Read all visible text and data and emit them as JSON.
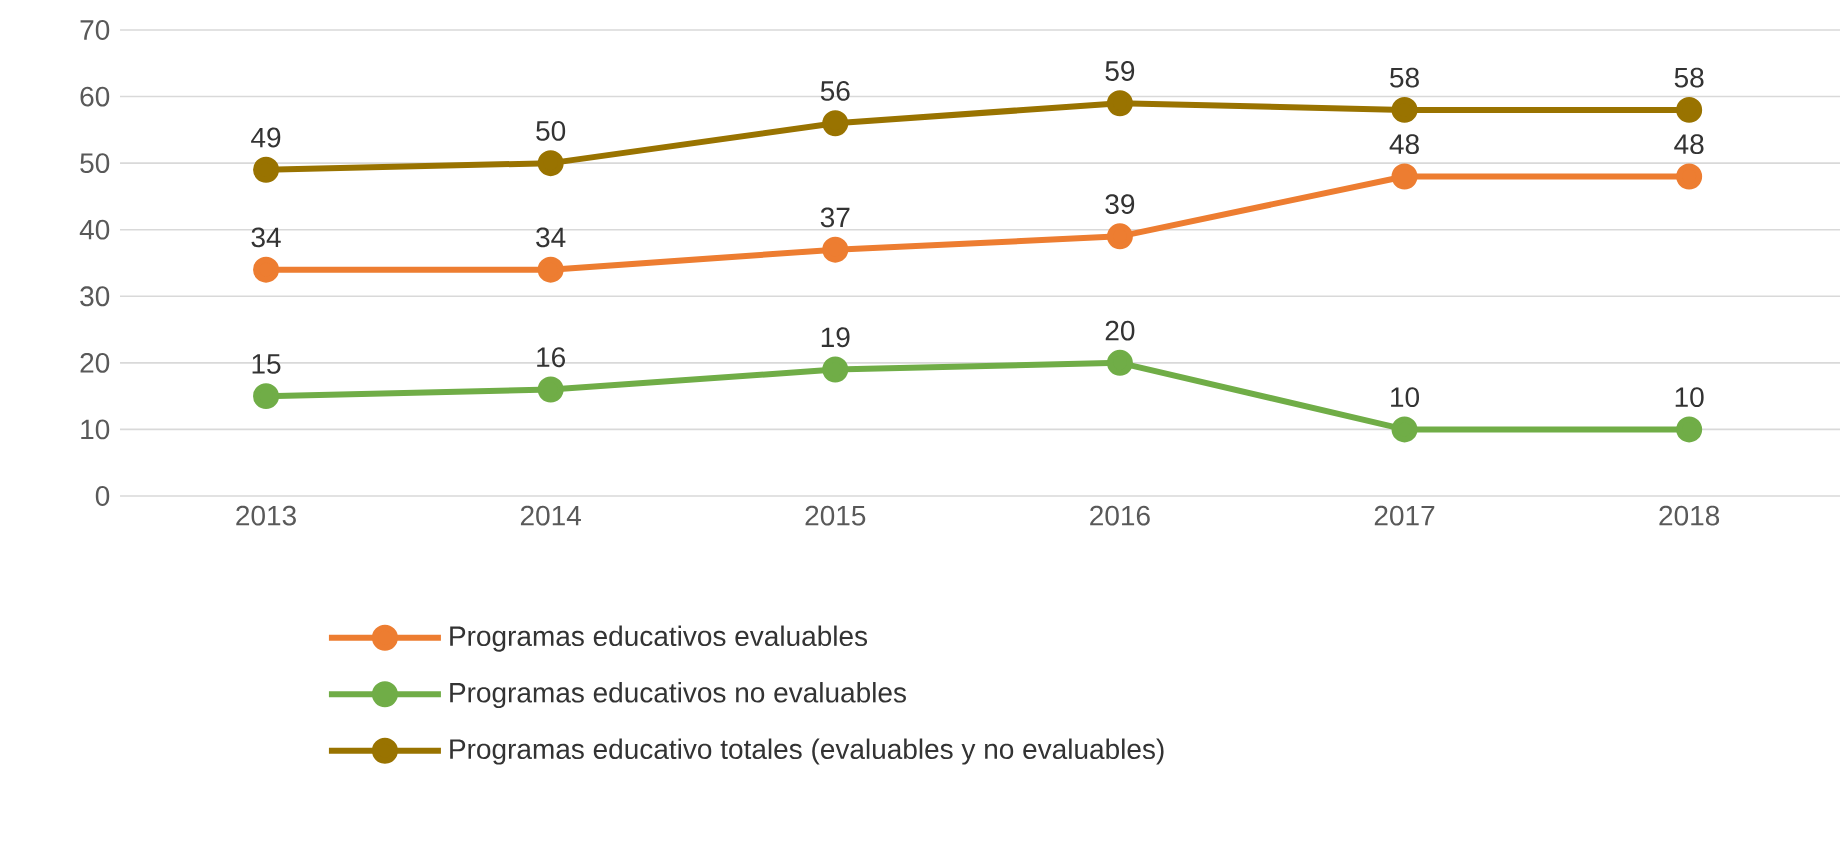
{
  "chart_data": {
    "type": "line",
    "categories": [
      "2013",
      "2014",
      "2015",
      "2016",
      "2017",
      "2018"
    ],
    "series": [
      {
        "name": "Programas educativos evaluables",
        "color": "#ed7d31",
        "values": [
          34,
          34,
          37,
          39,
          48,
          48
        ]
      },
      {
        "name": "Programas educativos no evaluables",
        "color": "#70ad47",
        "values": [
          15,
          16,
          19,
          20,
          10,
          10
        ]
      },
      {
        "name": "Programas educativo totales (evaluables y no evaluables)",
        "color": "#997300",
        "values": [
          49,
          50,
          56,
          59,
          58,
          58
        ]
      }
    ],
    "ylim": [
      0,
      70
    ],
    "yticks": [
      0,
      10,
      20,
      30,
      40,
      50,
      60,
      70
    ],
    "grid": "y",
    "legend": "bottom",
    "marker": "circle",
    "line_style": "solid",
    "data_labels": true
  }
}
